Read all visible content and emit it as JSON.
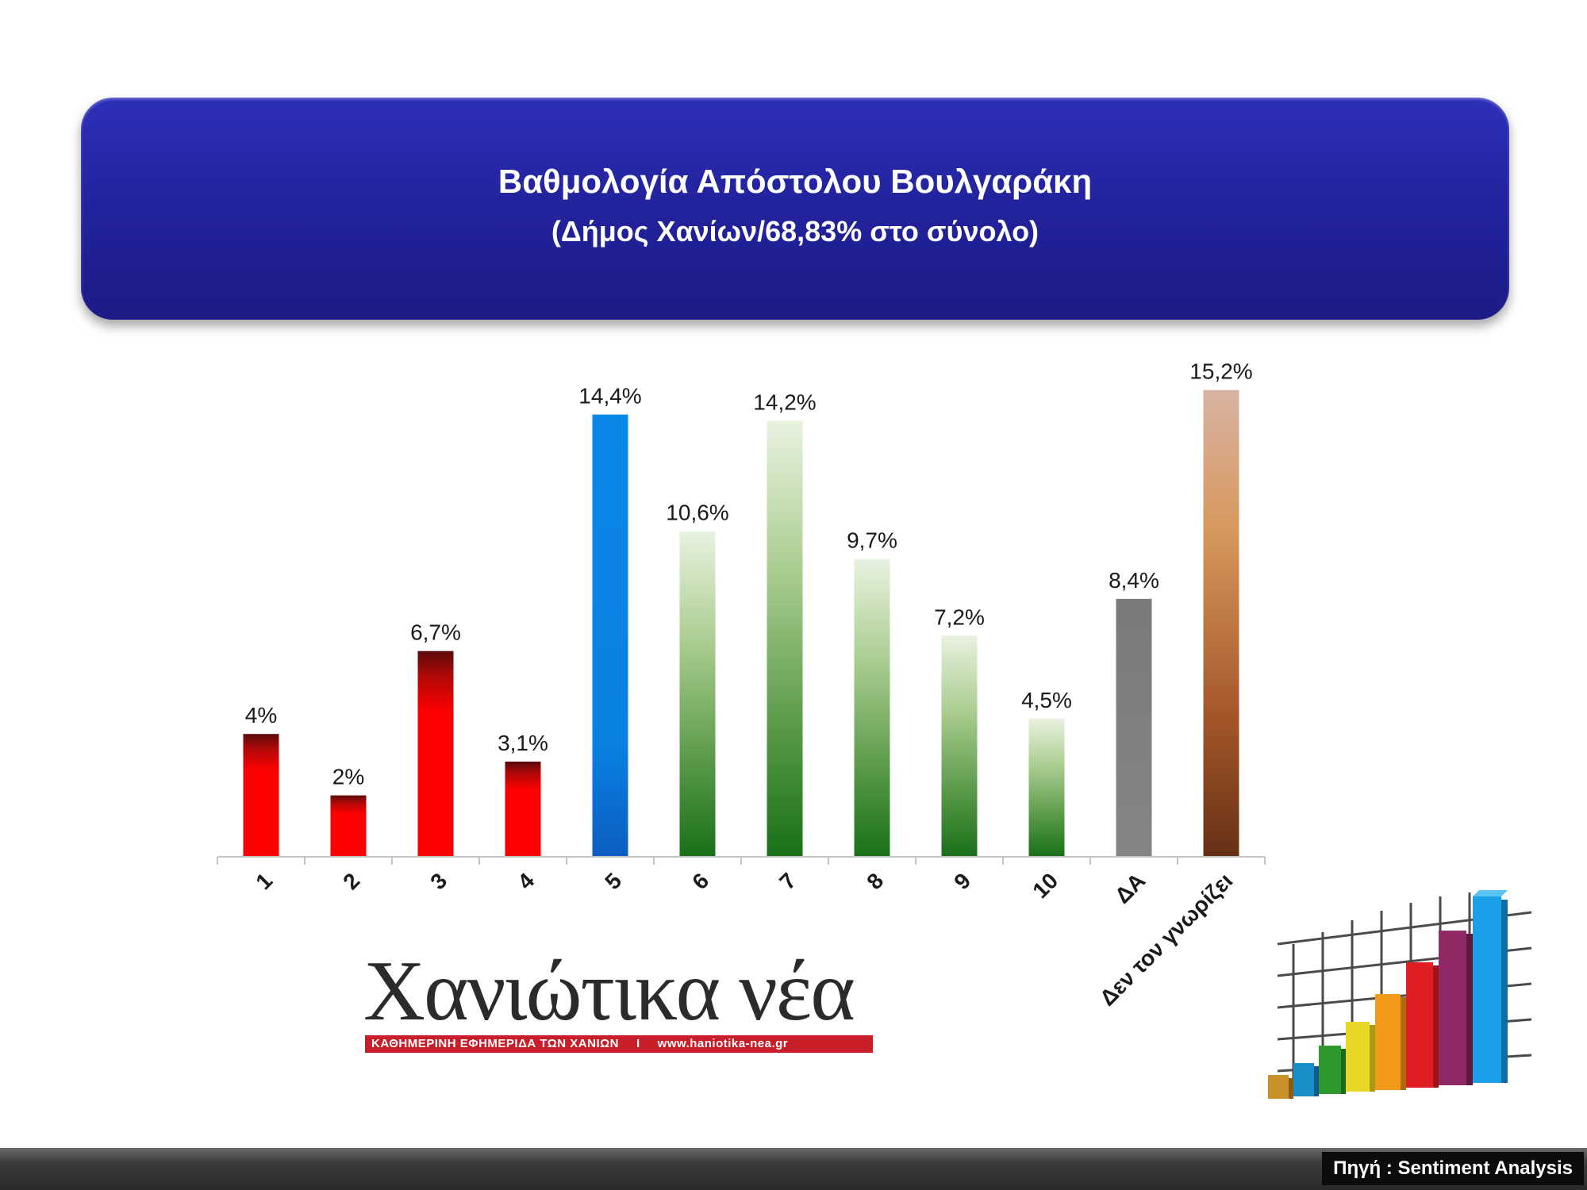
{
  "title": {
    "line1": "Βαθμολογία Απόστολου Βουλγαράκη",
    "line2": "(Δήμος Χανίων/68,83% στο σύνολο)"
  },
  "chart_data": {
    "type": "bar",
    "title": "Βαθμολογία Απόστολου Βουλγαράκη",
    "subtitle": "(Δήμος Χανίων/68,83% στο σύνολο)",
    "xlabel": "",
    "ylabel": "",
    "ylim": [
      0,
      15.5
    ],
    "grid": false,
    "legend": "none",
    "categories": [
      "1",
      "2",
      "3",
      "4",
      "5",
      "6",
      "7",
      "8",
      "9",
      "10",
      "ΔΑ",
      "Δεν τον γνωρίζει"
    ],
    "values": [
      4,
      2,
      6.7,
      3.1,
      14.4,
      10.6,
      14.2,
      9.7,
      7.2,
      4.5,
      8.4,
      15.2
    ],
    "labels": [
      "4%",
      "2%",
      "6,7%",
      "3,1%",
      "14,4%",
      "10,6%",
      "14,2%",
      "9,7%",
      "7,2%",
      "4,5%",
      "8,4%",
      "15,2%"
    ],
    "bar_styles": [
      "red",
      "red",
      "red",
      "red",
      "blue",
      "green",
      "green",
      "green",
      "green",
      "green",
      "gray",
      "brown"
    ]
  },
  "logo": {
    "wordmark": "Χανιώτικα νέα",
    "tagline": "ΚΑΘΗΜΕΡΙΝΗ ΕΦΗΜΕΡΙΔΑ ΤΩΝ ΧΑΝΙΩΝ",
    "separator": "I",
    "url": "www.haniotika-nea.gr"
  },
  "footer": {
    "source": "Πηγή : Sentiment Analysis"
  },
  "colors": {
    "banner": "#2424a6",
    "red": "#ff0000",
    "blue": "#0a7fe0",
    "green": "#2a8a2a",
    "gray": "#808080",
    "brown": "#b5673a",
    "logo_strip": "#c81e2a"
  },
  "icons": {
    "decoration": "3d-bar-chart-icon"
  }
}
